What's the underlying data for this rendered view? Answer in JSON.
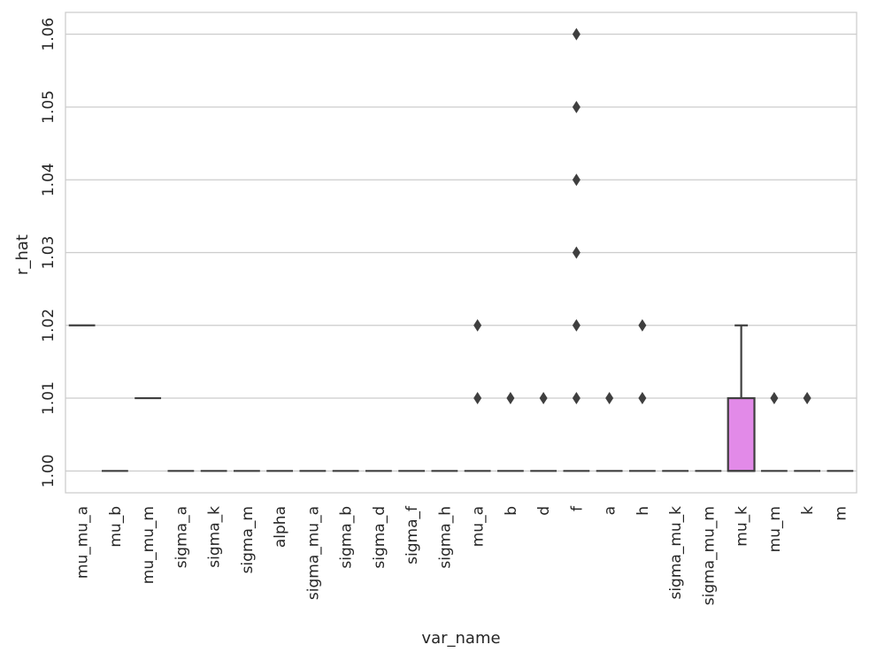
{
  "chart_data": {
    "type": "box",
    "xlabel": "var_name",
    "ylabel": "r_hat",
    "ylim": [
      0.997,
      1.063
    ],
    "yticks": [
      "1.00",
      "1.01",
      "1.02",
      "1.03",
      "1.04",
      "1.05",
      "1.06"
    ],
    "ytick_values": [
      1.0,
      1.01,
      1.02,
      1.03,
      1.04,
      1.05,
      1.06
    ],
    "grid": true,
    "categories": [
      "mu_mu_a",
      "mu_b",
      "mu_mu_m",
      "sigma_a",
      "sigma_k",
      "sigma_m",
      "alpha",
      "sigma_mu_a",
      "sigma_b",
      "sigma_d",
      "sigma_f",
      "sigma_h",
      "mu_a",
      "b",
      "d",
      "f",
      "a",
      "h",
      "sigma_mu_k",
      "sigma_mu_m",
      "mu_k",
      "mu_m",
      "k",
      "m"
    ],
    "boxes": [
      {
        "q1": 1.02,
        "median": 1.02,
        "q3": 1.02,
        "whislo": 1.02,
        "whishi": 1.02,
        "fliers": []
      },
      {
        "q1": 1.0,
        "median": 1.0,
        "q3": 1.0,
        "whislo": 1.0,
        "whishi": 1.0,
        "fliers": []
      },
      {
        "q1": 1.01,
        "median": 1.01,
        "q3": 1.01,
        "whislo": 1.01,
        "whishi": 1.01,
        "fliers": []
      },
      {
        "q1": 1.0,
        "median": 1.0,
        "q3": 1.0,
        "whislo": 1.0,
        "whishi": 1.0,
        "fliers": []
      },
      {
        "q1": 1.0,
        "median": 1.0,
        "q3": 1.0,
        "whislo": 1.0,
        "whishi": 1.0,
        "fliers": []
      },
      {
        "q1": 1.0,
        "median": 1.0,
        "q3": 1.0,
        "whislo": 1.0,
        "whishi": 1.0,
        "fliers": []
      },
      {
        "q1": 1.0,
        "median": 1.0,
        "q3": 1.0,
        "whislo": 1.0,
        "whishi": 1.0,
        "fliers": []
      },
      {
        "q1": 1.0,
        "median": 1.0,
        "q3": 1.0,
        "whislo": 1.0,
        "whishi": 1.0,
        "fliers": []
      },
      {
        "q1": 1.0,
        "median": 1.0,
        "q3": 1.0,
        "whislo": 1.0,
        "whishi": 1.0,
        "fliers": []
      },
      {
        "q1": 1.0,
        "median": 1.0,
        "q3": 1.0,
        "whislo": 1.0,
        "whishi": 1.0,
        "fliers": []
      },
      {
        "q1": 1.0,
        "median": 1.0,
        "q3": 1.0,
        "whislo": 1.0,
        "whishi": 1.0,
        "fliers": []
      },
      {
        "q1": 1.0,
        "median": 1.0,
        "q3": 1.0,
        "whislo": 1.0,
        "whishi": 1.0,
        "fliers": []
      },
      {
        "q1": 1.0,
        "median": 1.0,
        "q3": 1.0,
        "whislo": 1.0,
        "whishi": 1.0,
        "fliers": [
          1.01,
          1.02
        ]
      },
      {
        "q1": 1.0,
        "median": 1.0,
        "q3": 1.0,
        "whislo": 1.0,
        "whishi": 1.0,
        "fliers": [
          1.01
        ]
      },
      {
        "q1": 1.0,
        "median": 1.0,
        "q3": 1.0,
        "whislo": 1.0,
        "whishi": 1.0,
        "fliers": [
          1.01
        ]
      },
      {
        "q1": 1.0,
        "median": 1.0,
        "q3": 1.0,
        "whislo": 1.0,
        "whishi": 1.0,
        "fliers": [
          1.01,
          1.02,
          1.03,
          1.04,
          1.05,
          1.06
        ]
      },
      {
        "q1": 1.0,
        "median": 1.0,
        "q3": 1.0,
        "whislo": 1.0,
        "whishi": 1.0,
        "fliers": [
          1.01
        ]
      },
      {
        "q1": 1.0,
        "median": 1.0,
        "q3": 1.0,
        "whislo": 1.0,
        "whishi": 1.0,
        "fliers": [
          1.01,
          1.02
        ]
      },
      {
        "q1": 1.0,
        "median": 1.0,
        "q3": 1.0,
        "whislo": 1.0,
        "whishi": 1.0,
        "fliers": []
      },
      {
        "q1": 1.0,
        "median": 1.0,
        "q3": 1.0,
        "whislo": 1.0,
        "whishi": 1.0,
        "fliers": []
      },
      {
        "q1": 1.0,
        "median": 1.0,
        "q3": 1.01,
        "whislo": 1.0,
        "whishi": 1.02,
        "fliers": []
      },
      {
        "q1": 1.0,
        "median": 1.0,
        "q3": 1.0,
        "whislo": 1.0,
        "whishi": 1.0,
        "fliers": [
          1.01
        ]
      },
      {
        "q1": 1.0,
        "median": 1.0,
        "q3": 1.0,
        "whislo": 1.0,
        "whishi": 1.0,
        "fliers": [
          1.01
        ]
      },
      {
        "q1": 1.0,
        "median": 1.0,
        "q3": 1.0,
        "whislo": 1.0,
        "whishi": 1.0,
        "fliers": []
      }
    ],
    "colors": {
      "box_fill": "#e28ae8",
      "line": "#3f3f3f",
      "grid": "#cccccc",
      "frame": "#cccccc",
      "text": "#262626"
    }
  }
}
